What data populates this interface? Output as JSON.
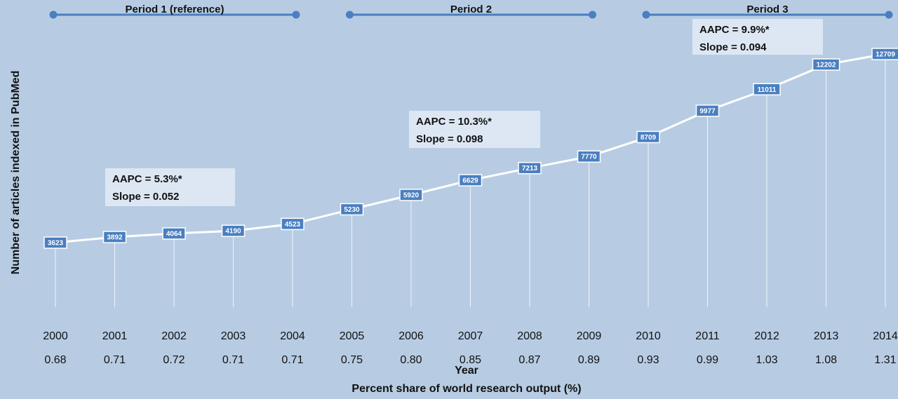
{
  "chart_data": {
    "type": "line",
    "x": [
      "2000",
      "2001",
      "2002",
      "2003",
      "2004",
      "2005",
      "2006",
      "2007",
      "2008",
      "2009",
      "2010",
      "2011",
      "2012",
      "2013",
      "2014"
    ],
    "secondary_x": [
      "0.68",
      "0.71",
      "0.72",
      "0.71",
      "0.71",
      "0.75",
      "0.80",
      "0.85",
      "0.87",
      "0.89",
      "0.93",
      "0.99",
      "1.03",
      "1.08",
      "1.31"
    ],
    "series": [
      {
        "values": [
          3623,
          3892,
          4064,
          4190,
          4523,
          5230,
          5920,
          6629,
          7213,
          7770,
          8709,
          9977,
          11011,
          12202,
          12709
        ]
      }
    ],
    "xlabel": "Year",
    "secondary_xlabel": "Percent share of world research output (%)",
    "ylabel": "Number of articles indexed in PubMed",
    "grid": false,
    "data_labels": true,
    "periods": [
      {
        "label": "Period 1 (reference)",
        "start": "2000",
        "end": "2004"
      },
      {
        "label": "Period 2",
        "start": "2005",
        "end": "2009"
      },
      {
        "label": "Period 3",
        "start": "2010",
        "end": "2014"
      }
    ],
    "annotations": [
      {
        "line1": "AAPC = 5.3%*",
        "line2": "Slope = 0.052"
      },
      {
        "line1": "AAPC = 10.3%*",
        "line2": "Slope = 0.098"
      },
      {
        "line1": "AAPC = 9.9%*",
        "line2": "Slope = 0.094"
      }
    ],
    "colors": {
      "background": "#b7cce3",
      "line": "#ffffff",
      "marker_box": "#4a7fc1",
      "period_bar": "#4a7fc1",
      "annotation_box": "#dde7f3"
    }
  }
}
